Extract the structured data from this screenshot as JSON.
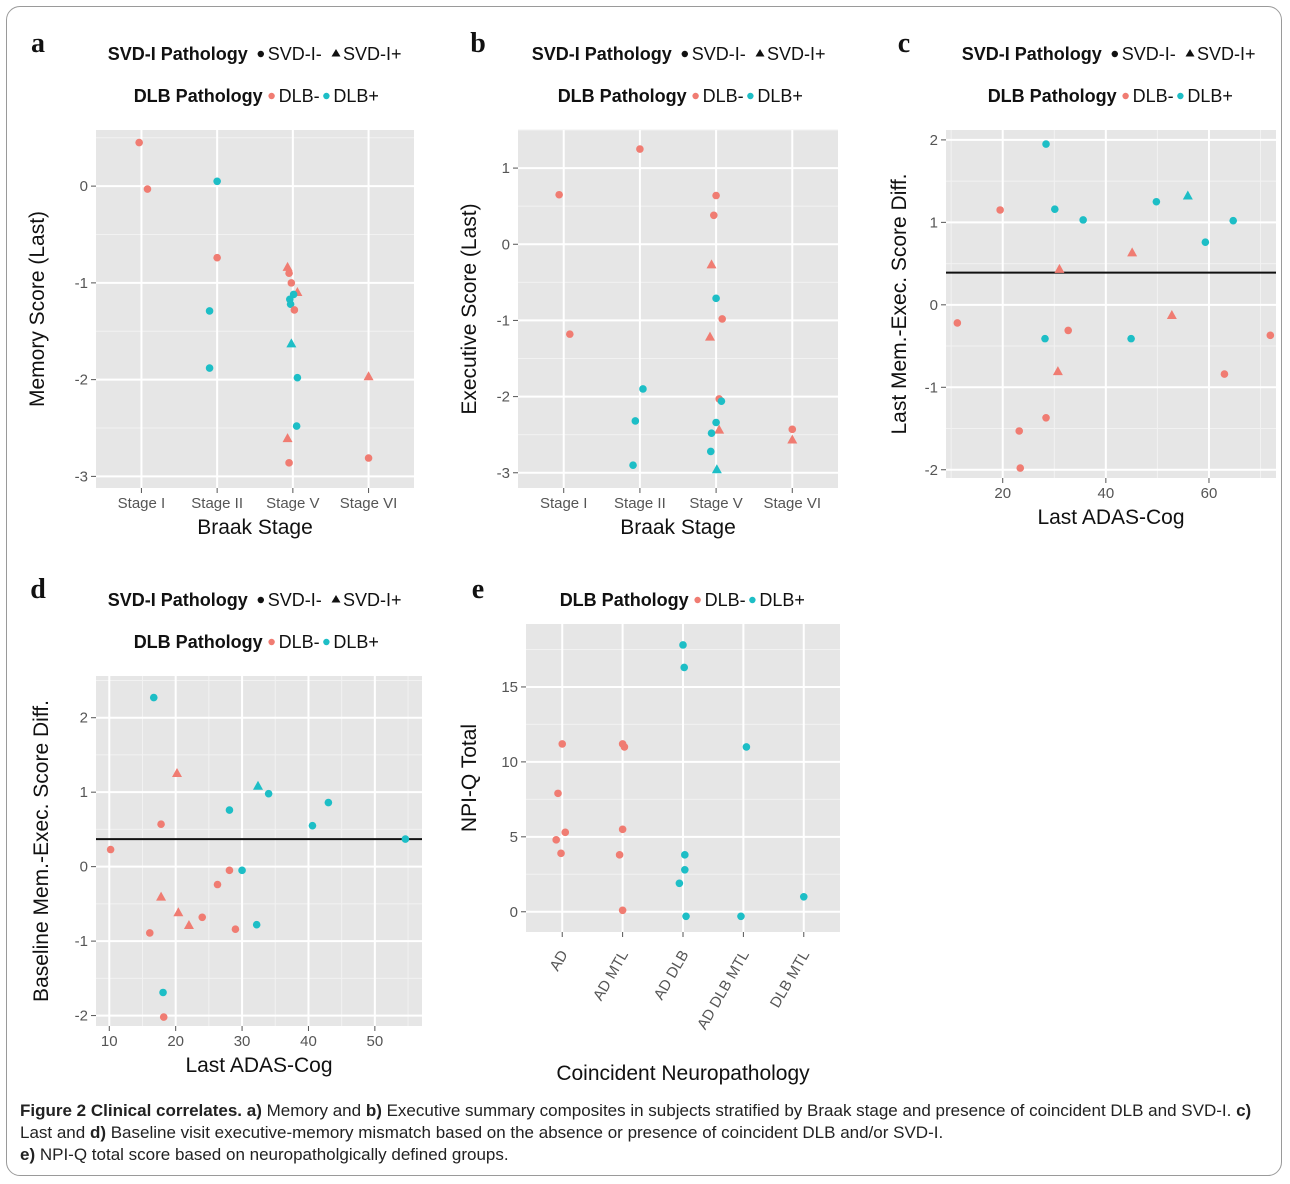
{
  "legend": {
    "svd_title": "SVD-I Pathology",
    "svd_neg": "SVD-I-",
    "svd_pos": "SVD-I+",
    "dlb_title": "DLB Pathology",
    "dlb_neg": "DLB-",
    "dlb_pos": "DLB+"
  },
  "colors": {
    "dlb_neg": "#F07C72",
    "dlb_pos": "#1DBEC6",
    "panel_bg": "#E6E6E6",
    "grid": "#ffffff",
    "ref_line": "#111111"
  },
  "caption": {
    "fig_label": "Figure 2 Clinical correlates.",
    "a_label": "a)",
    "t1": " Memory and ",
    "b_label": "b)",
    "t2": " Executive summary composites in subjects stratified by Braak stage and presence of coincident DLB and SVD-I. ",
    "c_label": "c)",
    "t3": " Last and ",
    "d_label": "d)",
    "t4": " Baseline visit executive-memory mismatch based on the absence or presence of coincident DLB and/or SVD-I.",
    "e_label": "e)",
    "t5": " NPI-Q total score based on neuropatholgically defined groups."
  },
  "chart_data": [
    {
      "panel": "a",
      "type": "scatter",
      "xlabel": "Braak  Stage",
      "ylabel": "Memory Score (Last)",
      "categories": [
        "Stage I",
        "Stage II",
        "Stage V",
        "Stage VI"
      ],
      "ylim": [
        -3.12,
        0.58
      ],
      "yticks": [
        0,
        -1,
        -2,
        -3
      ],
      "grid": true,
      "points": [
        {
          "x": 0.97,
          "y": 0.45,
          "dlb": "-",
          "svd": "-"
        },
        {
          "x": 1.08,
          "y": -0.03,
          "dlb": "-",
          "svd": "-"
        },
        {
          "x": 2.0,
          "y": 0.05,
          "dlb": "+",
          "svd": "-"
        },
        {
          "x": 2.0,
          "y": -0.74,
          "dlb": "-",
          "svd": "-"
        },
        {
          "x": 1.9,
          "y": -1.29,
          "dlb": "+",
          "svd": "-"
        },
        {
          "x": 1.9,
          "y": -1.88,
          "dlb": "+",
          "svd": "-"
        },
        {
          "x": 2.93,
          "y": -0.84,
          "dlb": "-",
          "svd": "+"
        },
        {
          "x": 2.95,
          "y": -0.9,
          "dlb": "-",
          "svd": "-"
        },
        {
          "x": 2.98,
          "y": -1.0,
          "dlb": "-",
          "svd": "-"
        },
        {
          "x": 3.06,
          "y": -1.1,
          "dlb": "-",
          "svd": "+"
        },
        {
          "x": 3.01,
          "y": -1.12,
          "dlb": "+",
          "svd": "-"
        },
        {
          "x": 2.96,
          "y": -1.17,
          "dlb": "+",
          "svd": "-"
        },
        {
          "x": 2.97,
          "y": -1.22,
          "dlb": "+",
          "svd": "-"
        },
        {
          "x": 3.02,
          "y": -1.28,
          "dlb": "-",
          "svd": "-"
        },
        {
          "x": 2.98,
          "y": -1.63,
          "dlb": "+",
          "svd": "+"
        },
        {
          "x": 3.06,
          "y": -1.98,
          "dlb": "+",
          "svd": "-"
        },
        {
          "x": 3.05,
          "y": -2.48,
          "dlb": "+",
          "svd": "-"
        },
        {
          "x": 2.93,
          "y": -2.61,
          "dlb": "-",
          "svd": "+"
        },
        {
          "x": 2.95,
          "y": -2.86,
          "dlb": "-",
          "svd": "-"
        },
        {
          "x": 4.0,
          "y": -1.97,
          "dlb": "-",
          "svd": "+"
        },
        {
          "x": 4.0,
          "y": -2.81,
          "dlb": "-",
          "svd": "-"
        }
      ]
    },
    {
      "panel": "b",
      "type": "scatter",
      "xlabel": "Braak  Stage",
      "ylabel": "Executive Score (Last)",
      "categories": [
        "Stage I",
        "Stage II",
        "Stage V",
        "Stage VI"
      ],
      "ylim": [
        -3.2,
        1.5
      ],
      "yticks": [
        1,
        0,
        -1,
        -2,
        -3
      ],
      "grid": true,
      "points": [
        {
          "x": 0.94,
          "y": 0.65,
          "dlb": "-",
          "svd": "-"
        },
        {
          "x": 1.08,
          "y": -1.18,
          "dlb": "-",
          "svd": "-"
        },
        {
          "x": 2.0,
          "y": 1.25,
          "dlb": "-",
          "svd": "-"
        },
        {
          "x": 2.04,
          "y": -1.9,
          "dlb": "+",
          "svd": "-"
        },
        {
          "x": 1.94,
          "y": -2.32,
          "dlb": "+",
          "svd": "-"
        },
        {
          "x": 1.91,
          "y": -2.9,
          "dlb": "+",
          "svd": "-"
        },
        {
          "x": 3.0,
          "y": 0.64,
          "dlb": "-",
          "svd": "-"
        },
        {
          "x": 2.97,
          "y": 0.38,
          "dlb": "-",
          "svd": "-"
        },
        {
          "x": 2.94,
          "y": -0.27,
          "dlb": "-",
          "svd": "+"
        },
        {
          "x": 3.0,
          "y": -0.71,
          "dlb": "+",
          "svd": "-"
        },
        {
          "x": 3.08,
          "y": -0.98,
          "dlb": "-",
          "svd": "-"
        },
        {
          "x": 2.92,
          "y": -1.22,
          "dlb": "-",
          "svd": "+"
        },
        {
          "x": 3.04,
          "y": -2.03,
          "dlb": "-",
          "svd": "-"
        },
        {
          "x": 3.07,
          "y": -2.06,
          "dlb": "+",
          "svd": "-"
        },
        {
          "x": 3.0,
          "y": -2.34,
          "dlb": "+",
          "svd": "-"
        },
        {
          "x": 3.04,
          "y": -2.44,
          "dlb": "-",
          "svd": "+"
        },
        {
          "x": 2.94,
          "y": -2.48,
          "dlb": "+",
          "svd": "-"
        },
        {
          "x": 2.93,
          "y": -2.72,
          "dlb": "+",
          "svd": "-"
        },
        {
          "x": 3.01,
          "y": -2.96,
          "dlb": "+",
          "svd": "+"
        },
        {
          "x": 4.0,
          "y": -2.43,
          "dlb": "-",
          "svd": "-"
        },
        {
          "x": 4.0,
          "y": -2.57,
          "dlb": "-",
          "svd": "+"
        }
      ]
    },
    {
      "panel": "c",
      "type": "scatter",
      "xlabel": "Last ADAS-Cog",
      "ylabel": "Last Mem.-Exec. Score Diff.",
      "xlim": [
        9,
        73
      ],
      "xticks": [
        20,
        40,
        60
      ],
      "ylim": [
        -2.1,
        2.12
      ],
      "yticks": [
        2,
        1,
        0,
        -1,
        -2
      ],
      "hline": 0.39,
      "grid": true,
      "points": [
        {
          "x": 11.2,
          "y": -0.22,
          "dlb": "-",
          "svd": "-"
        },
        {
          "x": 19.5,
          "y": 1.15,
          "dlb": "-",
          "svd": "-"
        },
        {
          "x": 23.2,
          "y": -1.53,
          "dlb": "-",
          "svd": "-"
        },
        {
          "x": 23.4,
          "y": -1.98,
          "dlb": "-",
          "svd": "-"
        },
        {
          "x": 28.4,
          "y": 1.95,
          "dlb": "+",
          "svd": "-"
        },
        {
          "x": 28.2,
          "y": -0.41,
          "dlb": "+",
          "svd": "-"
        },
        {
          "x": 28.4,
          "y": -1.37,
          "dlb": "-",
          "svd": "-"
        },
        {
          "x": 30.1,
          "y": 1.16,
          "dlb": "+",
          "svd": "-"
        },
        {
          "x": 31.0,
          "y": 0.43,
          "dlb": "-",
          "svd": "+"
        },
        {
          "x": 30.7,
          "y": -0.81,
          "dlb": "-",
          "svd": "+"
        },
        {
          "x": 32.7,
          "y": -0.31,
          "dlb": "-",
          "svd": "-"
        },
        {
          "x": 35.6,
          "y": 1.03,
          "dlb": "+",
          "svd": "-"
        },
        {
          "x": 45.1,
          "y": 0.63,
          "dlb": "-",
          "svd": "+"
        },
        {
          "x": 44.9,
          "y": -0.41,
          "dlb": "+",
          "svd": "-"
        },
        {
          "x": 49.8,
          "y": 1.25,
          "dlb": "+",
          "svd": "-"
        },
        {
          "x": 52.8,
          "y": -0.13,
          "dlb": "-",
          "svd": "+"
        },
        {
          "x": 55.9,
          "y": 1.32,
          "dlb": "+",
          "svd": "+"
        },
        {
          "x": 59.3,
          "y": 0.76,
          "dlb": "+",
          "svd": "-"
        },
        {
          "x": 64.7,
          "y": 1.02,
          "dlb": "+",
          "svd": "-"
        },
        {
          "x": 63.0,
          "y": -0.84,
          "dlb": "-",
          "svd": "-"
        },
        {
          "x": 71.9,
          "y": -0.37,
          "dlb": "-",
          "svd": "-"
        }
      ]
    },
    {
      "panel": "d",
      "type": "scatter",
      "xlabel": "Last ADAS-Cog",
      "ylabel": "Baseline Mem.-Exec. Score Diff.",
      "xlim": [
        8,
        57.1
      ],
      "xticks": [
        10,
        20,
        30,
        40,
        50
      ],
      "ylim": [
        -2.14,
        2.56
      ],
      "yticks": [
        2,
        1,
        0,
        -1,
        -2
      ],
      "hline": 0.37,
      "grid": true,
      "points": [
        {
          "x": 10.2,
          "y": 0.23,
          "dlb": "-",
          "svd": "-"
        },
        {
          "x": 16.7,
          "y": 2.27,
          "dlb": "+",
          "svd": "-"
        },
        {
          "x": 16.1,
          "y": -0.89,
          "dlb": "-",
          "svd": "-"
        },
        {
          "x": 17.8,
          "y": 0.57,
          "dlb": "-",
          "svd": "-"
        },
        {
          "x": 17.8,
          "y": -0.41,
          "dlb": "-",
          "svd": "+"
        },
        {
          "x": 18.1,
          "y": -1.69,
          "dlb": "+",
          "svd": "-"
        },
        {
          "x": 18.2,
          "y": -2.02,
          "dlb": "-",
          "svd": "-"
        },
        {
          "x": 20.2,
          "y": 1.25,
          "dlb": "-",
          "svd": "+"
        },
        {
          "x": 20.4,
          "y": -0.62,
          "dlb": "-",
          "svd": "+"
        },
        {
          "x": 22.0,
          "y": -0.79,
          "dlb": "-",
          "svd": "+"
        },
        {
          "x": 24.0,
          "y": -0.68,
          "dlb": "-",
          "svd": "-"
        },
        {
          "x": 26.3,
          "y": -0.24,
          "dlb": "-",
          "svd": "-"
        },
        {
          "x": 28.1,
          "y": 0.76,
          "dlb": "+",
          "svd": "-"
        },
        {
          "x": 28.1,
          "y": -0.05,
          "dlb": "-",
          "svd": "-"
        },
        {
          "x": 29.0,
          "y": -0.84,
          "dlb": "-",
          "svd": "-"
        },
        {
          "x": 30.0,
          "y": -0.05,
          "dlb": "+",
          "svd": "-"
        },
        {
          "x": 32.4,
          "y": 1.08,
          "dlb": "+",
          "svd": "+"
        },
        {
          "x": 32.2,
          "y": -0.78,
          "dlb": "+",
          "svd": "-"
        },
        {
          "x": 34.0,
          "y": 0.98,
          "dlb": "+",
          "svd": "-"
        },
        {
          "x": 40.6,
          "y": 0.55,
          "dlb": "+",
          "svd": "-"
        },
        {
          "x": 43.0,
          "y": 0.86,
          "dlb": "+",
          "svd": "-"
        },
        {
          "x": 54.6,
          "y": 0.37,
          "dlb": "+",
          "svd": "-"
        }
      ]
    },
    {
      "panel": "e",
      "type": "scatter",
      "xlabel": "Coincident Neuropathology",
      "ylabel": "NPI-Q Total",
      "categories": [
        "AD",
        "AD MTL",
        "AD DLB",
        "AD DLB MTL",
        "DLB MTL"
      ],
      "ylim": [
        -1.35,
        19.2
      ],
      "yticks": [
        15,
        10,
        5,
        0
      ],
      "grid": true,
      "points": [
        {
          "x": 1.0,
          "y": 11.2,
          "dlb": "-",
          "svd": "-"
        },
        {
          "x": 0.93,
          "y": 7.9,
          "dlb": "-",
          "svd": "-"
        },
        {
          "x": 1.05,
          "y": 5.3,
          "dlb": "-",
          "svd": "-"
        },
        {
          "x": 0.9,
          "y": 4.8,
          "dlb": "-",
          "svd": "-"
        },
        {
          "x": 0.98,
          "y": 3.9,
          "dlb": "-",
          "svd": "-"
        },
        {
          "x": 2.0,
          "y": 11.2,
          "dlb": "-",
          "svd": "-"
        },
        {
          "x": 2.03,
          "y": 11.0,
          "dlb": "-",
          "svd": "-"
        },
        {
          "x": 2.0,
          "y": 5.5,
          "dlb": "-",
          "svd": "-"
        },
        {
          "x": 1.95,
          "y": 3.8,
          "dlb": "-",
          "svd": "-"
        },
        {
          "x": 2.0,
          "y": 0.1,
          "dlb": "-",
          "svd": "-"
        },
        {
          "x": 3.0,
          "y": 17.8,
          "dlb": "+",
          "svd": "-"
        },
        {
          "x": 3.02,
          "y": 16.3,
          "dlb": "+",
          "svd": "-"
        },
        {
          "x": 3.03,
          "y": 3.8,
          "dlb": "+",
          "svd": "-"
        },
        {
          "x": 3.03,
          "y": 2.8,
          "dlb": "+",
          "svd": "-"
        },
        {
          "x": 2.94,
          "y": 1.9,
          "dlb": "+",
          "svd": "-"
        },
        {
          "x": 3.05,
          "y": -0.3,
          "dlb": "+",
          "svd": "-"
        },
        {
          "x": 4.05,
          "y": 11.0,
          "dlb": "+",
          "svd": "-"
        },
        {
          "x": 3.96,
          "y": -0.3,
          "dlb": "+",
          "svd": "-"
        },
        {
          "x": 5.0,
          "y": 1.0,
          "dlb": "+",
          "svd": "-"
        }
      ]
    }
  ]
}
